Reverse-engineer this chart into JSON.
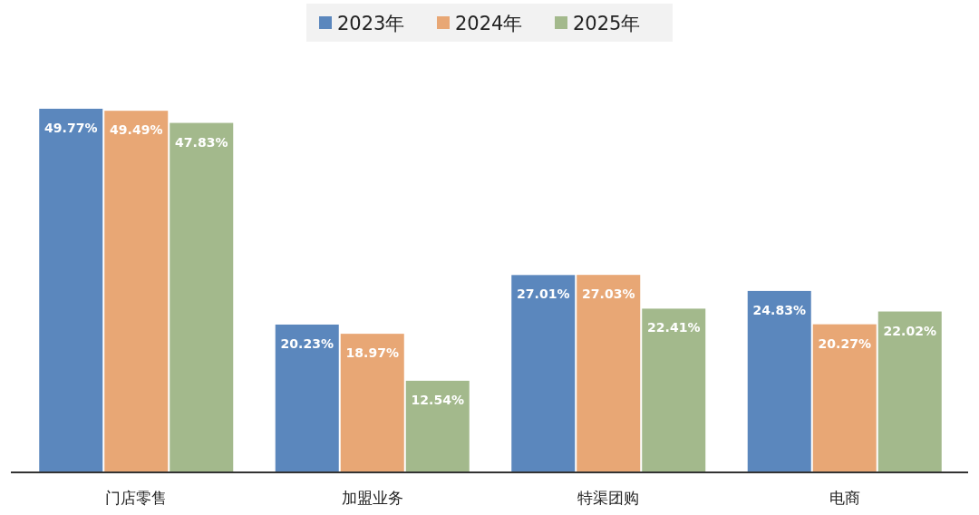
{
  "chart_data": {
    "type": "bar",
    "categories": [
      "门店零售",
      "加盟业务",
      "特渠团购",
      "电商"
    ],
    "series": [
      {
        "name": "2023年",
        "color": "#5b87bd",
        "values": [
          49.77,
          20.23,
          27.01,
          24.83
        ],
        "value_labels": [
          "49.77%",
          "20.23%",
          "27.01%",
          "24.83%"
        ]
      },
      {
        "name": "2024年",
        "color": "#e8a775",
        "values": [
          49.49,
          18.97,
          27.03,
          20.27
        ],
        "value_labels": [
          "49.49%",
          "18.97%",
          "27.03%",
          "20.27%"
        ]
      },
      {
        "name": "2025年",
        "color": "#a3b98c",
        "values": [
          47.83,
          12.54,
          22.41,
          22.02
        ],
        "value_labels": [
          "47.83%",
          "12.54%",
          "22.41%",
          "22.02%"
        ]
      }
    ],
    "legend": "top"
  }
}
